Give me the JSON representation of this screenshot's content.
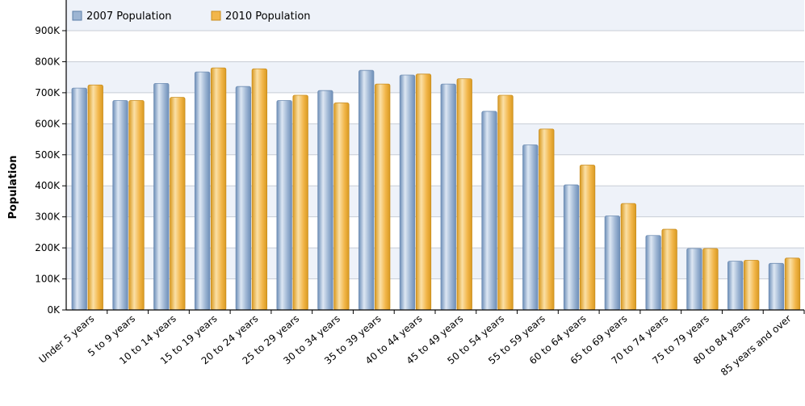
{
  "chart_data": {
    "type": "bar",
    "title": "",
    "xlabel": "",
    "ylabel": "Population",
    "ylim": [
      0,
      900000
    ],
    "yticks": [
      {
        "value": 0,
        "label": "0K"
      },
      {
        "value": 100000,
        "label": "100K"
      },
      {
        "value": 200000,
        "label": "200K"
      },
      {
        "value": 300000,
        "label": "300K"
      },
      {
        "value": 400000,
        "label": "400K"
      },
      {
        "value": 500000,
        "label": "500K"
      },
      {
        "value": 600000,
        "label": "600K"
      },
      {
        "value": 700000,
        "label": "700K"
      },
      {
        "value": 800000,
        "label": "800K"
      },
      {
        "value": 900000,
        "label": "900K"
      }
    ],
    "categories": [
      "Under 5 years",
      "5 to 9 years",
      "10 to 14 years",
      "15 to 19 years",
      "20 to 24 years",
      "25 to 29 years",
      "30 to 34 years",
      "35 to 39 years",
      "40 to 44 years",
      "45 to 49 years",
      "50 to 54 years",
      "55 to 59 years",
      "60 to 64 years",
      "65 to 69 years",
      "70 to 74 years",
      "75 to 79 years",
      "80 to 84 years",
      "85 years and over"
    ],
    "series": [
      {
        "name": "2007 Population",
        "color": "#9db5d3",
        "values": [
          715000,
          675000,
          730000,
          767000,
          720000,
          675000,
          707000,
          772000,
          757000,
          728000,
          640000,
          532000,
          403000,
          303000,
          240000,
          198000,
          157000,
          150000
        ]
      },
      {
        "name": "2010 Population",
        "color": "#f2b64a",
        "values": [
          725000,
          675000,
          685000,
          780000,
          777000,
          692000,
          667000,
          728000,
          760000,
          745000,
          692000,
          583000,
          467000,
          343000,
          260000,
          198000,
          160000,
          167000
        ]
      }
    ],
    "grid": true,
    "legend": "top-left"
  },
  "colors": {
    "band_light": "#eef2f9",
    "band_white": "#ffffff",
    "gridline": "#c8cdd6",
    "axis": "#000000"
  }
}
